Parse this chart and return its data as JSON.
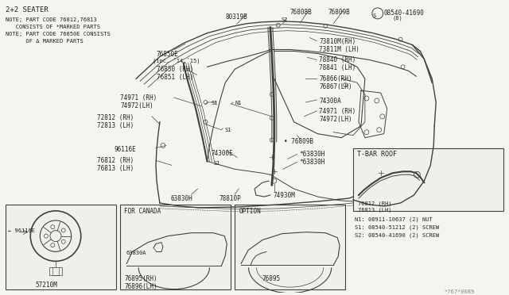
{
  "bg_color": "#f5f5f0",
  "line_color": "#404040",
  "text_color": "#202020",
  "title": "2+2 SEATER",
  "notes": [
    "NOTE; PART CODE 76812,76813",
    "   CONSISTS OF *MARKED PARTS",
    "NOTE; PART CODE 76850E CONSISTS",
    "      OF Δ MARKED PARTS"
  ],
  "footnotes": [
    "N1: 08911-10637 (2) NUT",
    "S1: 08540-51212 (2) SCREW",
    "S2: 08540-41690 (2) SCREW"
  ],
  "watermark": "*767*0089"
}
